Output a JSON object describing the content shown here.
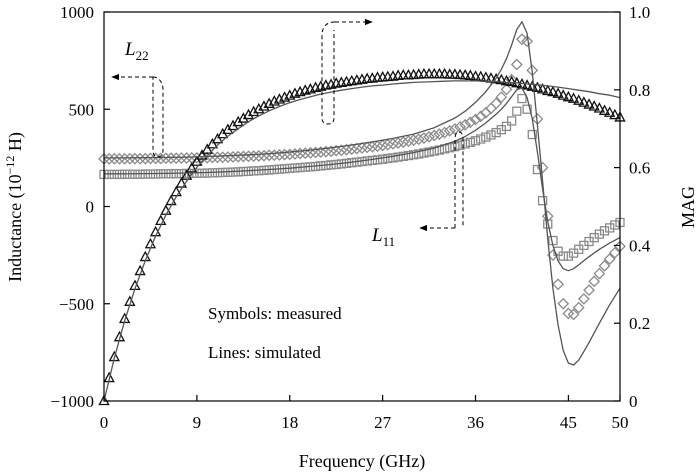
{
  "chart_data": {
    "type": "line",
    "xlabel": "Frequency (GHz)",
    "ylabel": {
      "pre": "Inductance (10",
      "sup": "−12",
      "post": " H)"
    },
    "y2label": "MAG",
    "xlim": [
      0,
      50
    ],
    "ylim": [
      -1000,
      1000
    ],
    "y2lim": [
      0,
      1
    ],
    "grid": false,
    "xticks": [
      0,
      9,
      18,
      27,
      36,
      45,
      50
    ],
    "xticklabels": [
      "0",
      "9",
      "18",
      "27",
      "36",
      "45",
      "50"
    ],
    "yticks": [
      1000,
      500,
      0,
      -500,
      -1000
    ],
    "yticklabels": [
      "1000",
      "500",
      "0",
      "−500",
      "−1000"
    ],
    "y2ticks": [
      1,
      0.8,
      0.6,
      0.4,
      0.2,
      0
    ],
    "y2ticklabels": [
      "1.0",
      "0.8",
      "0.6",
      "0.4",
      "0.2",
      "0"
    ],
    "annotations": {
      "l22": {
        "main": "L",
        "sub": "22"
      },
      "l11": {
        "main": "L",
        "sub": "11"
      },
      "symbols_note": "Symbols: measured",
      "lines_note": "Lines: simulated"
    },
    "x": [
      0,
      0.5,
      1,
      1.5,
      2,
      2.5,
      3,
      3.5,
      4,
      4.5,
      5,
      5.5,
      6,
      6.5,
      7,
      7.5,
      8,
      8.5,
      9,
      9.5,
      10,
      10.5,
      11,
      11.5,
      12,
      12.5,
      13,
      13.5,
      14,
      14.5,
      15,
      15.5,
      16,
      16.5,
      17,
      17.5,
      18,
      18.5,
      19,
      19.5,
      20,
      20.5,
      21,
      21.5,
      22,
      22.5,
      23,
      23.5,
      24,
      24.5,
      25,
      25.5,
      26,
      26.5,
      27,
      27.5,
      28,
      28.5,
      29,
      29.5,
      30,
      30.5,
      31,
      31.5,
      32,
      32.5,
      33,
      33.5,
      34,
      34.5,
      35,
      35.5,
      36,
      36.5,
      37,
      37.5,
      38,
      38.5,
      39,
      39.5,
      40,
      40.5,
      41,
      41.5,
      42,
      42.5,
      43,
      43.5,
      44,
      44.5,
      45,
      45.5,
      46,
      46.5,
      47,
      47.5,
      48,
      48.5,
      49,
      49.5,
      50
    ],
    "series": [
      {
        "name": "L22",
        "axis": "left",
        "marker": "diamond",
        "color": "#8a8a8a",
        "y": [
          245,
          245,
          245,
          245,
          245,
          246,
          246,
          246,
          246,
          247,
          247,
          247,
          248,
          248,
          248,
          249,
          249,
          250,
          250,
          251,
          251,
          252,
          253,
          253,
          254,
          255,
          256,
          257,
          258,
          259,
          260,
          261,
          263,
          264,
          265,
          267,
          268,
          270,
          272,
          274,
          276,
          278,
          280,
          282,
          284,
          287,
          289,
          292,
          295,
          298,
          301,
          304,
          307,
          310,
          314,
          318,
          322,
          326,
          331,
          336,
          341,
          346,
          352,
          358,
          365,
          372,
          380,
          389,
          398,
          409,
          420,
          433,
          447,
          463,
          482,
          504,
          530,
          562,
          602,
          652,
          730,
          860,
          850,
          700,
          450,
          200,
          -50,
          -250,
          -400,
          -500,
          -550,
          -555,
          -520,
          -475,
          -430,
          -385,
          -345,
          -305,
          -270,
          -238,
          -205
        ]
      },
      {
        "name": "L11",
        "axis": "left",
        "marker": "square",
        "color": "#8a8a8a",
        "y": [
          165,
          165,
          165,
          165,
          166,
          166,
          166,
          166,
          167,
          167,
          167,
          168,
          168,
          168,
          169,
          169,
          170,
          170,
          171,
          171,
          172,
          173,
          174,
          175,
          176,
          177,
          178,
          180,
          181,
          183,
          184,
          186,
          188,
          190,
          192,
          194,
          196,
          198,
          200,
          202,
          204,
          206,
          209,
          211,
          214,
          216,
          219,
          222,
          225,
          228,
          231,
          234,
          237,
          240,
          243,
          247,
          250,
          254,
          258,
          262,
          266,
          270,
          275,
          280,
          285,
          290,
          296,
          302,
          308,
          315,
          322,
          330,
          338,
          347,
          357,
          368,
          380,
          395,
          412,
          440,
          490,
          555,
          500,
          370,
          190,
          30,
          -90,
          -175,
          -230,
          -255,
          -255,
          -240,
          -220,
          -200,
          -180,
          -160,
          -142,
          -125,
          -110,
          -95,
          -82
        ]
      },
      {
        "name": "MAG",
        "axis": "right",
        "marker": "triangle",
        "color": "#111111",
        "y": [
          0,
          0.059,
          0.113,
          0.164,
          0.211,
          0.255,
          0.296,
          0.334,
          0.37,
          0.403,
          0.434,
          0.463,
          0.489,
          0.514,
          0.537,
          0.559,
          0.579,
          0.598,
          0.615,
          0.631,
          0.646,
          0.66,
          0.673,
          0.686,
          0.697,
          0.707,
          0.717,
          0.726,
          0.735,
          0.743,
          0.75,
          0.757,
          0.764,
          0.77,
          0.775,
          0.78,
          0.785,
          0.79,
          0.794,
          0.798,
          0.801,
          0.805,
          0.808,
          0.811,
          0.813,
          0.816,
          0.818,
          0.82,
          0.822,
          0.824,
          0.826,
          0.828,
          0.829,
          0.831,
          0.832,
          0.833,
          0.834,
          0.836,
          0.837,
          0.837,
          0.838,
          0.839,
          0.84,
          0.84,
          0.84,
          0.84,
          0.84,
          0.839,
          0.839,
          0.838,
          0.837,
          0.836,
          0.834,
          0.833,
          0.831,
          0.829,
          0.827,
          0.825,
          0.822,
          0.82,
          0.817,
          0.814,
          0.811,
          0.808,
          0.805,
          0.801,
          0.797,
          0.794,
          0.79,
          0.785,
          0.781,
          0.777,
          0.772,
          0.767,
          0.762,
          0.757,
          0.752,
          0.746,
          0.741,
          0.735,
          0.729
        ]
      },
      {
        "name": "L22",
        "axis": "left",
        "color": "#555555",
        "x": [
          0,
          2,
          4,
          6,
          8,
          10,
          12,
          14,
          16,
          18,
          20,
          22,
          24,
          26,
          28,
          30,
          32,
          34,
          35,
          36,
          37,
          38,
          38.5,
          39,
          39.5,
          40,
          40.5,
          41,
          41.5,
          42,
          42.5,
          43,
          43.5,
          44,
          44.5,
          45,
          45.5,
          46,
          46.5,
          47,
          48,
          49,
          50
        ],
        "y": [
          250,
          250,
          251,
          252,
          254,
          257,
          261,
          266,
          272,
          280,
          290,
          302,
          316,
          332,
          350,
          372,
          405,
          455,
          490,
          535,
          590,
          660,
          705,
          760,
          830,
          910,
          950,
          890,
          690,
          420,
          130,
          -170,
          -420,
          -610,
          -740,
          -805,
          -815,
          -790,
          -745,
          -700,
          -600,
          -505,
          -420
        ]
      },
      {
        "name": "L11",
        "axis": "left",
        "color": "#555555",
        "x": [
          0,
          2,
          4,
          6,
          8,
          10,
          12,
          14,
          16,
          18,
          20,
          22,
          24,
          26,
          28,
          30,
          32,
          34,
          35,
          36,
          37,
          38,
          38.5,
          39,
          39.5,
          40,
          40.5,
          41,
          41.5,
          42,
          42.5,
          43,
          43.5,
          44,
          44.5,
          45,
          45.5,
          46,
          46.5,
          47,
          48,
          49,
          50
        ],
        "y": [
          168,
          168,
          169,
          170,
          172,
          175,
          179,
          184,
          190,
          197,
          206,
          216,
          228,
          242,
          258,
          277,
          300,
          335,
          360,
          392,
          430,
          475,
          500,
          530,
          565,
          600,
          610,
          560,
          450,
          280,
          90,
          -80,
          -200,
          -280,
          -320,
          -330,
          -320,
          -300,
          -278,
          -258,
          -220,
          -188,
          -160
        ]
      },
      {
        "name": "MAG",
        "axis": "right",
        "color": "#555555",
        "x": [
          0,
          1,
          2,
          3,
          4,
          5,
          6,
          7,
          8,
          9,
          10,
          11,
          12,
          13,
          14,
          15,
          16,
          17,
          18,
          19,
          20,
          21,
          22,
          23,
          24,
          25,
          26,
          27,
          28,
          29,
          30,
          31,
          32,
          33,
          34,
          35,
          36,
          37,
          38,
          39,
          40,
          41,
          42,
          43,
          44,
          45,
          46,
          47,
          48,
          49,
          50
        ],
        "y": [
          0,
          0.11,
          0.206,
          0.289,
          0.361,
          0.424,
          0.478,
          0.525,
          0.565,
          0.601,
          0.631,
          0.658,
          0.681,
          0.7,
          0.718,
          0.733,
          0.746,
          0.757,
          0.767,
          0.775,
          0.782,
          0.789,
          0.794,
          0.799,
          0.803,
          0.807,
          0.81,
          0.812,
          0.815,
          0.817,
          0.819,
          0.82,
          0.821,
          0.822,
          0.823,
          0.823,
          0.823,
          0.822,
          0.821,
          0.819,
          0.818,
          0.815,
          0.813,
          0.81,
          0.807,
          0.803,
          0.799,
          0.795,
          0.79,
          0.786,
          0.78
        ]
      }
    ]
  }
}
